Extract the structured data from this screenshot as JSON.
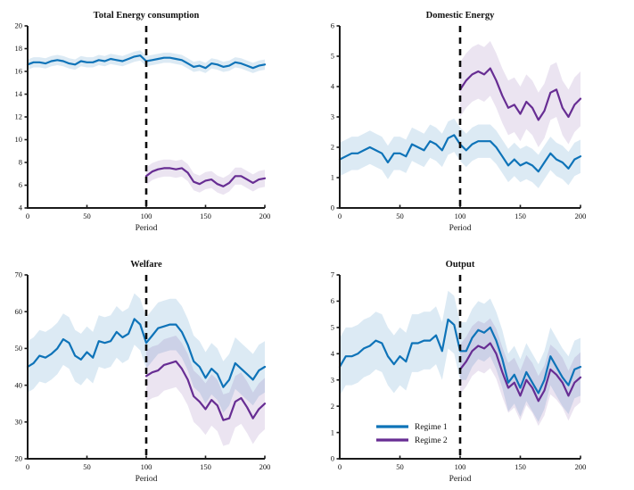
{
  "figure": {
    "background": "#ffffff"
  },
  "colors": {
    "regime1": "#0e73b8",
    "regime2": "#672d93",
    "regime1_band": "rgba(17,115,184,0.15)",
    "regime2_band": "rgba(103,45,147,0.13)",
    "vline": "#0d0d0d",
    "axis": "#1a1a1a"
  },
  "legend_labels": {
    "regime1": "Regime 1",
    "regime2": "Regime 2"
  },
  "chart_data": [
    {
      "type": "line",
      "title": "Total Energy consumption",
      "xlabel": "Period",
      "xlim": [
        0,
        200
      ],
      "xticks": [
        0,
        50,
        100,
        150,
        200
      ],
      "ylim": [
        4,
        20
      ],
      "yticks": [
        4,
        6,
        8,
        10,
        12,
        14,
        16,
        18,
        20
      ],
      "grid": false,
      "vline": {
        "x": 100,
        "style": "dashed"
      },
      "series": [
        {
          "name": "Regime 1",
          "color_key": "regime1",
          "band_color_key": "regime1_band",
          "x_start": 0,
          "x_step": 5,
          "band_halfwidth": 0.45,
          "values": [
            16.6,
            16.8,
            16.8,
            16.7,
            16.9,
            17.0,
            16.9,
            16.7,
            16.6,
            16.9,
            16.8,
            16.8,
            17.0,
            16.9,
            17.1,
            17.0,
            16.9,
            17.1,
            17.3,
            17.4,
            16.9,
            17.0,
            17.1,
            17.2,
            17.2,
            17.1,
            17.0,
            16.7,
            16.4,
            16.5,
            16.3,
            16.7,
            16.6,
            16.4,
            16.5,
            16.8,
            16.7,
            16.5,
            16.3,
            16.5,
            16.6
          ]
        },
        {
          "name": "Regime 2",
          "color_key": "regime2",
          "band_color_key": "regime2_band",
          "x_start": 100,
          "x_step": 5,
          "band_halfwidth": 0.75,
          "values": [
            6.8,
            7.2,
            7.4,
            7.5,
            7.5,
            7.4,
            7.5,
            7.1,
            6.3,
            6.1,
            6.4,
            6.5,
            6.1,
            5.9,
            6.2,
            6.8,
            6.8,
            6.5,
            6.2,
            6.5,
            6.6
          ]
        }
      ]
    },
    {
      "type": "line",
      "title": "Domestic Energy",
      "xlabel": "Period",
      "xlim": [
        0,
        200
      ],
      "xticks": [
        0,
        50,
        100,
        150,
        200
      ],
      "ylim": [
        0,
        6
      ],
      "yticks": [
        0,
        1,
        2,
        3,
        4,
        5,
        6
      ],
      "grid": false,
      "vline": {
        "x": 100,
        "style": "dashed"
      },
      "series": [
        {
          "name": "Regime 1",
          "color_key": "regime1",
          "band_color_key": "regime1_band",
          "x_start": 0,
          "x_step": 5,
          "band_halfwidth": 0.55,
          "values": [
            1.6,
            1.7,
            1.8,
            1.8,
            1.9,
            2.0,
            1.9,
            1.8,
            1.5,
            1.8,
            1.8,
            1.7,
            2.1,
            2.0,
            1.9,
            2.2,
            2.1,
            1.9,
            2.3,
            2.4,
            2.1,
            1.9,
            2.1,
            2.2,
            2.2,
            2.2,
            2.0,
            1.7,
            1.4,
            1.6,
            1.4,
            1.5,
            1.4,
            1.2,
            1.5,
            1.8,
            1.6,
            1.5,
            1.3,
            1.6,
            1.7
          ]
        },
        {
          "name": "Regime 2",
          "color_key": "regime2",
          "band_color_key": "regime2_band",
          "x_start": 100,
          "x_step": 5,
          "band_halfwidth": 0.9,
          "values": [
            3.9,
            4.2,
            4.4,
            4.5,
            4.4,
            4.6,
            4.2,
            3.7,
            3.3,
            3.4,
            3.1,
            3.5,
            3.3,
            2.9,
            3.2,
            3.8,
            3.9,
            3.3,
            3.0,
            3.4,
            3.6
          ]
        }
      ]
    },
    {
      "type": "line",
      "title": "Welfare",
      "xlabel": "Period",
      "xlim": [
        0,
        200
      ],
      "xticks": [
        0,
        50,
        100,
        150,
        200
      ],
      "ylim": [
        20,
        70
      ],
      "yticks": [
        20,
        30,
        40,
        50,
        60,
        70
      ],
      "grid": false,
      "vline": {
        "x": 100,
        "style": "dashed"
      },
      "series": [
        {
          "name": "Regime 1",
          "color_key": "regime1",
          "band_color_key": "regime1_band",
          "x_start": 0,
          "x_step": 5,
          "band_halfwidth": 7,
          "values": [
            45,
            46,
            48,
            47.5,
            48.5,
            50,
            52.5,
            51.5,
            48,
            47,
            49,
            47.5,
            52,
            51.5,
            52,
            54.5,
            53,
            54,
            58,
            56.5,
            51.5,
            53.5,
            55.5,
            56,
            56.5,
            56.5,
            54.5,
            51,
            46.5,
            45,
            42,
            44.5,
            43,
            39.5,
            41.5,
            46,
            44.5,
            43,
            41.5,
            44,
            45
          ]
        },
        {
          "name": "Regime 2",
          "color_key": "regime2",
          "band_color_key": "regime2_band",
          "x_start": 100,
          "x_step": 5,
          "band_halfwidth": 7,
          "values": [
            42.5,
            43.5,
            44,
            45.5,
            46,
            46.5,
            44.5,
            41.5,
            37,
            35.5,
            33.5,
            36,
            34.5,
            30.5,
            31,
            35.5,
            36.5,
            34,
            31,
            33.5,
            35
          ]
        }
      ]
    },
    {
      "type": "line",
      "title": "Output",
      "xlabel": "Period",
      "xlim": [
        0,
        200
      ],
      "xticks": [
        0,
        50,
        100,
        150,
        200
      ],
      "ylim": [
        0,
        7
      ],
      "yticks": [
        0,
        1,
        2,
        3,
        4,
        5,
        6,
        7
      ],
      "grid": false,
      "vline": {
        "x": 100,
        "style": "dashed"
      },
      "legend": {
        "position": "lower-left",
        "items": [
          {
            "label": "Regime 1",
            "color_key": "regime1"
          },
          {
            "label": "Regime 2",
            "color_key": "regime2"
          }
        ]
      },
      "series": [
        {
          "name": "Regime 1",
          "color_key": "regime1",
          "band_color_key": "regime1_band",
          "x_start": 0,
          "x_step": 5,
          "band_halfwidth": 1.1,
          "values": [
            3.5,
            3.9,
            3.9,
            4.0,
            4.2,
            4.3,
            4.5,
            4.4,
            3.9,
            3.6,
            3.9,
            3.7,
            4.4,
            4.4,
            4.5,
            4.5,
            4.7,
            4.1,
            5.3,
            5.1,
            4.1,
            4.1,
            4.6,
            4.9,
            4.8,
            5.0,
            4.5,
            3.8,
            2.9,
            3.2,
            2.7,
            3.3,
            2.9,
            2.5,
            3.0,
            3.9,
            3.5,
            3.1,
            2.8,
            3.4,
            3.5
          ]
        },
        {
          "name": "Regime 2",
          "color_key": "regime2",
          "band_color_key": "regime2_band",
          "x_start": 100,
          "x_step": 5,
          "band_halfwidth": 0.95,
          "values": [
            3.4,
            3.7,
            4.1,
            4.3,
            4.2,
            4.4,
            4.0,
            3.3,
            2.7,
            2.9,
            2.4,
            3.0,
            2.7,
            2.2,
            2.6,
            3.4,
            3.2,
            2.9,
            2.4,
            2.9,
            3.1
          ]
        }
      ]
    }
  ]
}
